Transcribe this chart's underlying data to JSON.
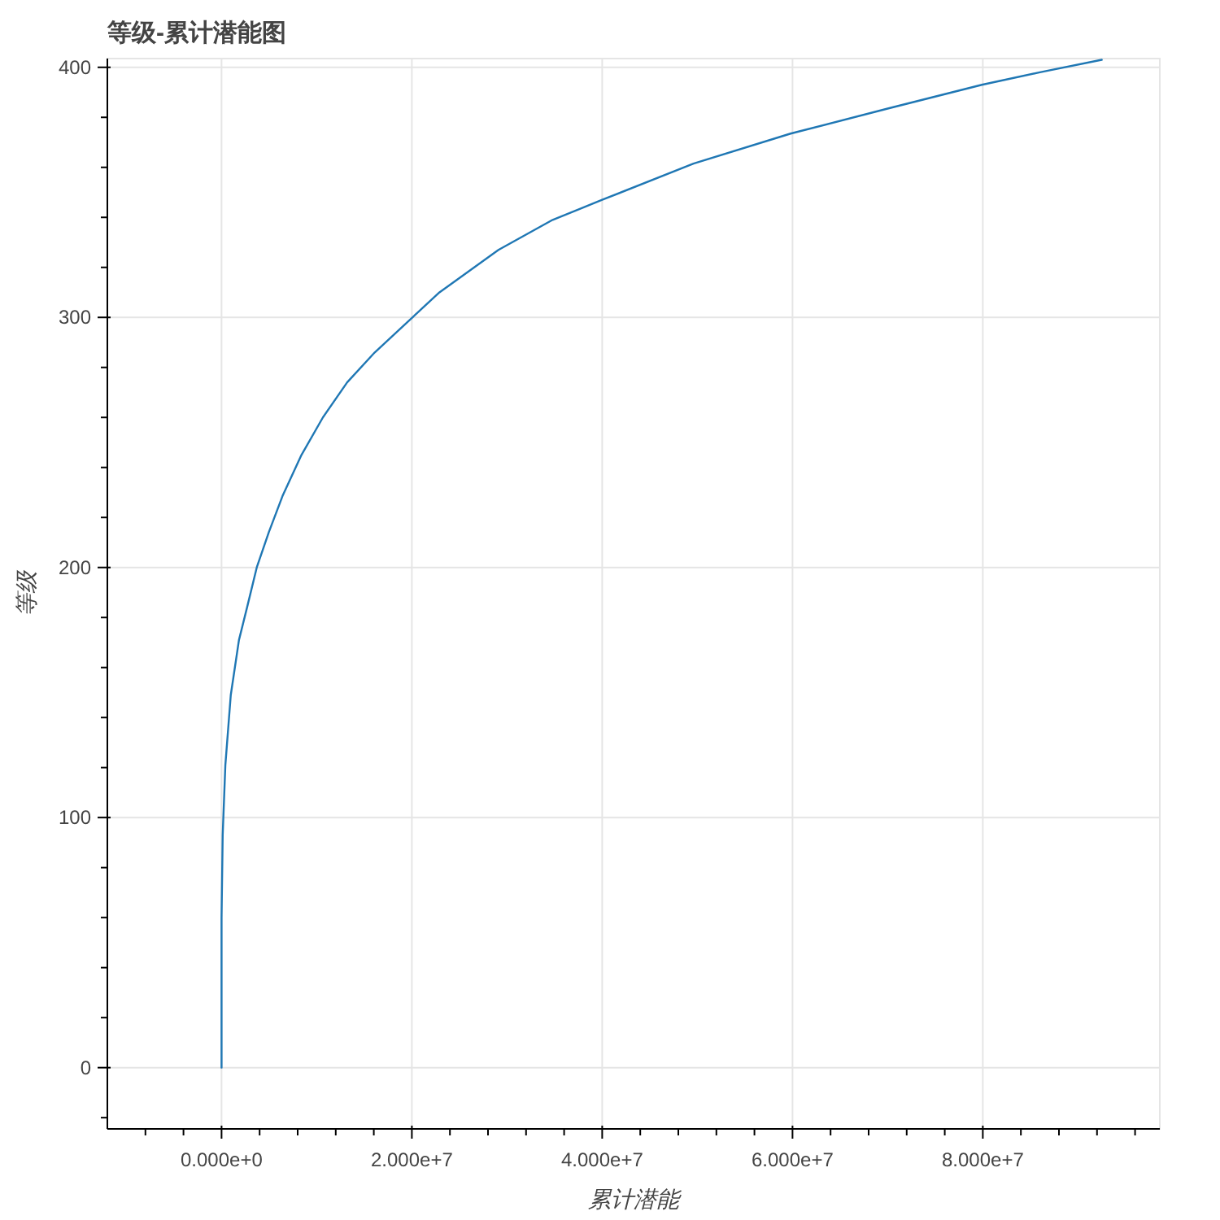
{
  "chart_data": {
    "type": "line",
    "title": "等级-累计潜能图",
    "xlabel": "累计潜能",
    "ylabel": "等级",
    "x": [
      0,
      0,
      120000,
      400000,
      970000,
      1830000,
      2680000,
      3700000,
      4960000,
      6400000,
      8400000,
      10650000,
      13200000,
      16100000,
      19500000,
      22900000,
      29100000,
      34800000,
      40000000,
      49600000,
      59800000,
      70000000,
      79900000,
      86000000,
      92500000
    ],
    "series": [
      {
        "color": "#1f77b4",
        "values": [
          0,
          60,
          93,
          121,
          149,
          171,
          184,
          200,
          214,
          228.5,
          245,
          260,
          274,
          286,
          298,
          310,
          327,
          339,
          347,
          361.5,
          373.5,
          383.5,
          393,
          398,
          403
        ]
      }
    ],
    "xlim": [
      -12000000,
      98600000
    ],
    "ylim": [
      -24.5,
      403.5
    ],
    "xticks": [
      {
        "value": 0,
        "label": "0.000e+0"
      },
      {
        "value": 20000000,
        "label": "2.000e+7"
      },
      {
        "value": 40000000,
        "label": "4.000e+7"
      },
      {
        "value": 60000000,
        "label": "6.000e+7"
      },
      {
        "value": 80000000,
        "label": "8.000e+7"
      },
      {
        "value": -8000000,
        "label": null
      },
      {
        "value": -4000000,
        "label": null
      },
      {
        "value": 4000000,
        "label": null
      },
      {
        "value": 8000000,
        "label": null
      },
      {
        "value": 12000000,
        "label": null
      },
      {
        "value": 16000000,
        "label": null
      },
      {
        "value": 24000000,
        "label": null
      },
      {
        "value": 28000000,
        "label": null
      },
      {
        "value": 32000000,
        "label": null
      },
      {
        "value": 36000000,
        "label": null
      },
      {
        "value": 44000000,
        "label": null
      },
      {
        "value": 48000000,
        "label": null
      },
      {
        "value": 52000000,
        "label": null
      },
      {
        "value": 56000000,
        "label": null
      },
      {
        "value": 64000000,
        "label": null
      },
      {
        "value": 68000000,
        "label": null
      },
      {
        "value": 72000000,
        "label": null
      },
      {
        "value": 76000000,
        "label": null
      },
      {
        "value": 84000000,
        "label": null
      },
      {
        "value": 88000000,
        "label": null
      },
      {
        "value": 92000000,
        "label": null
      },
      {
        "value": 96000000,
        "label": null
      }
    ],
    "yticks": [
      0,
      100,
      200,
      300,
      400,
      {
        "value": -20,
        "label": null
      },
      {
        "value": 20,
        "label": null
      },
      {
        "value": 40,
        "label": null
      },
      {
        "value": 60,
        "label": null
      },
      {
        "value": 80,
        "label": null
      },
      {
        "value": 120,
        "label": null
      },
      {
        "value": 140,
        "label": null
      },
      {
        "value": 160,
        "label": null
      },
      {
        "value": 180,
        "label": null
      },
      {
        "value": 220,
        "label": null
      },
      {
        "value": 240,
        "label": null
      },
      {
        "value": 260,
        "label": null
      },
      {
        "value": 280,
        "label": null
      },
      {
        "value": 320,
        "label": null
      },
      {
        "value": 340,
        "label": null
      },
      {
        "value": 360,
        "label": null
      },
      {
        "value": 380,
        "label": null
      }
    ],
    "grid": true,
    "marker": "none",
    "line_style": "solid"
  }
}
